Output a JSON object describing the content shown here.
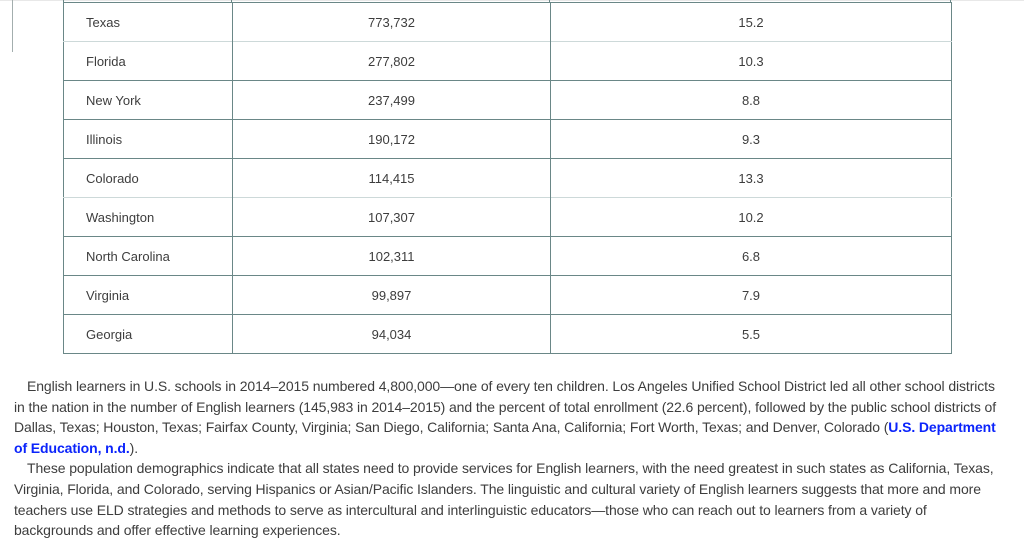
{
  "colors": {
    "text": "#3d3d3d",
    "link_blue": "#0b24fb",
    "border_dark": "#6a8787",
    "border_light": "#cdd9d9",
    "hairline": "#e8e8e8",
    "artifact": "#a3aeae"
  },
  "table": {
    "rows": [
      {
        "state": "Texas",
        "count": "773,732",
        "percent": "15.2"
      },
      {
        "state": "Florida",
        "count": "277,802",
        "percent": "10.3"
      },
      {
        "state": "New York",
        "count": "237,499",
        "percent": "8.8"
      },
      {
        "state": "Illinois",
        "count": "190,172",
        "percent": "9.3"
      },
      {
        "state": "Colorado",
        "count": "114,415",
        "percent": "13.3"
      },
      {
        "state": "Washington",
        "count": "107,307",
        "percent": "10.2"
      },
      {
        "state": "North Carolina",
        "count": "102,311",
        "percent": "6.8"
      },
      {
        "state": "Virginia",
        "count": "99,897",
        "percent": "7.9"
      },
      {
        "state": "Georgia",
        "count": "94,034",
        "percent": "5.5"
      }
    ]
  },
  "paragraphs": {
    "p1_before_link": "English learners in U.S. schools in 2014–2015 numbered 4,800,000—one of every ten children. Los Angeles Unified School District led all other school districts in the nation in the number of English learners (145,983 in 2014–2015) and the percent of total enrollment (22.6 percent), followed by the public school districts of Dallas, Texas; Houston, Texas; Fairfax County, Virginia; San Diego, California; Santa Ana, California; Fort Worth, Texas; and Denver, Colorado (",
    "p1_link": "U.S. Department of Education, n.d.",
    "p1_after_link": ").",
    "p2": "These population demographics indicate that all states need to provide services for English learners, with the need greatest in such states as California, Texas, Virginia, Florida, and Colorado, serving Hispanics or Asian/Pacific Islanders. The linguistic and cultural variety of English learners suggests that more and more teachers use ELD strategies and methods to serve as intercultural and interlinguistic educators—those who can reach out to learners from a variety of backgrounds and offer effective learning experiences."
  }
}
